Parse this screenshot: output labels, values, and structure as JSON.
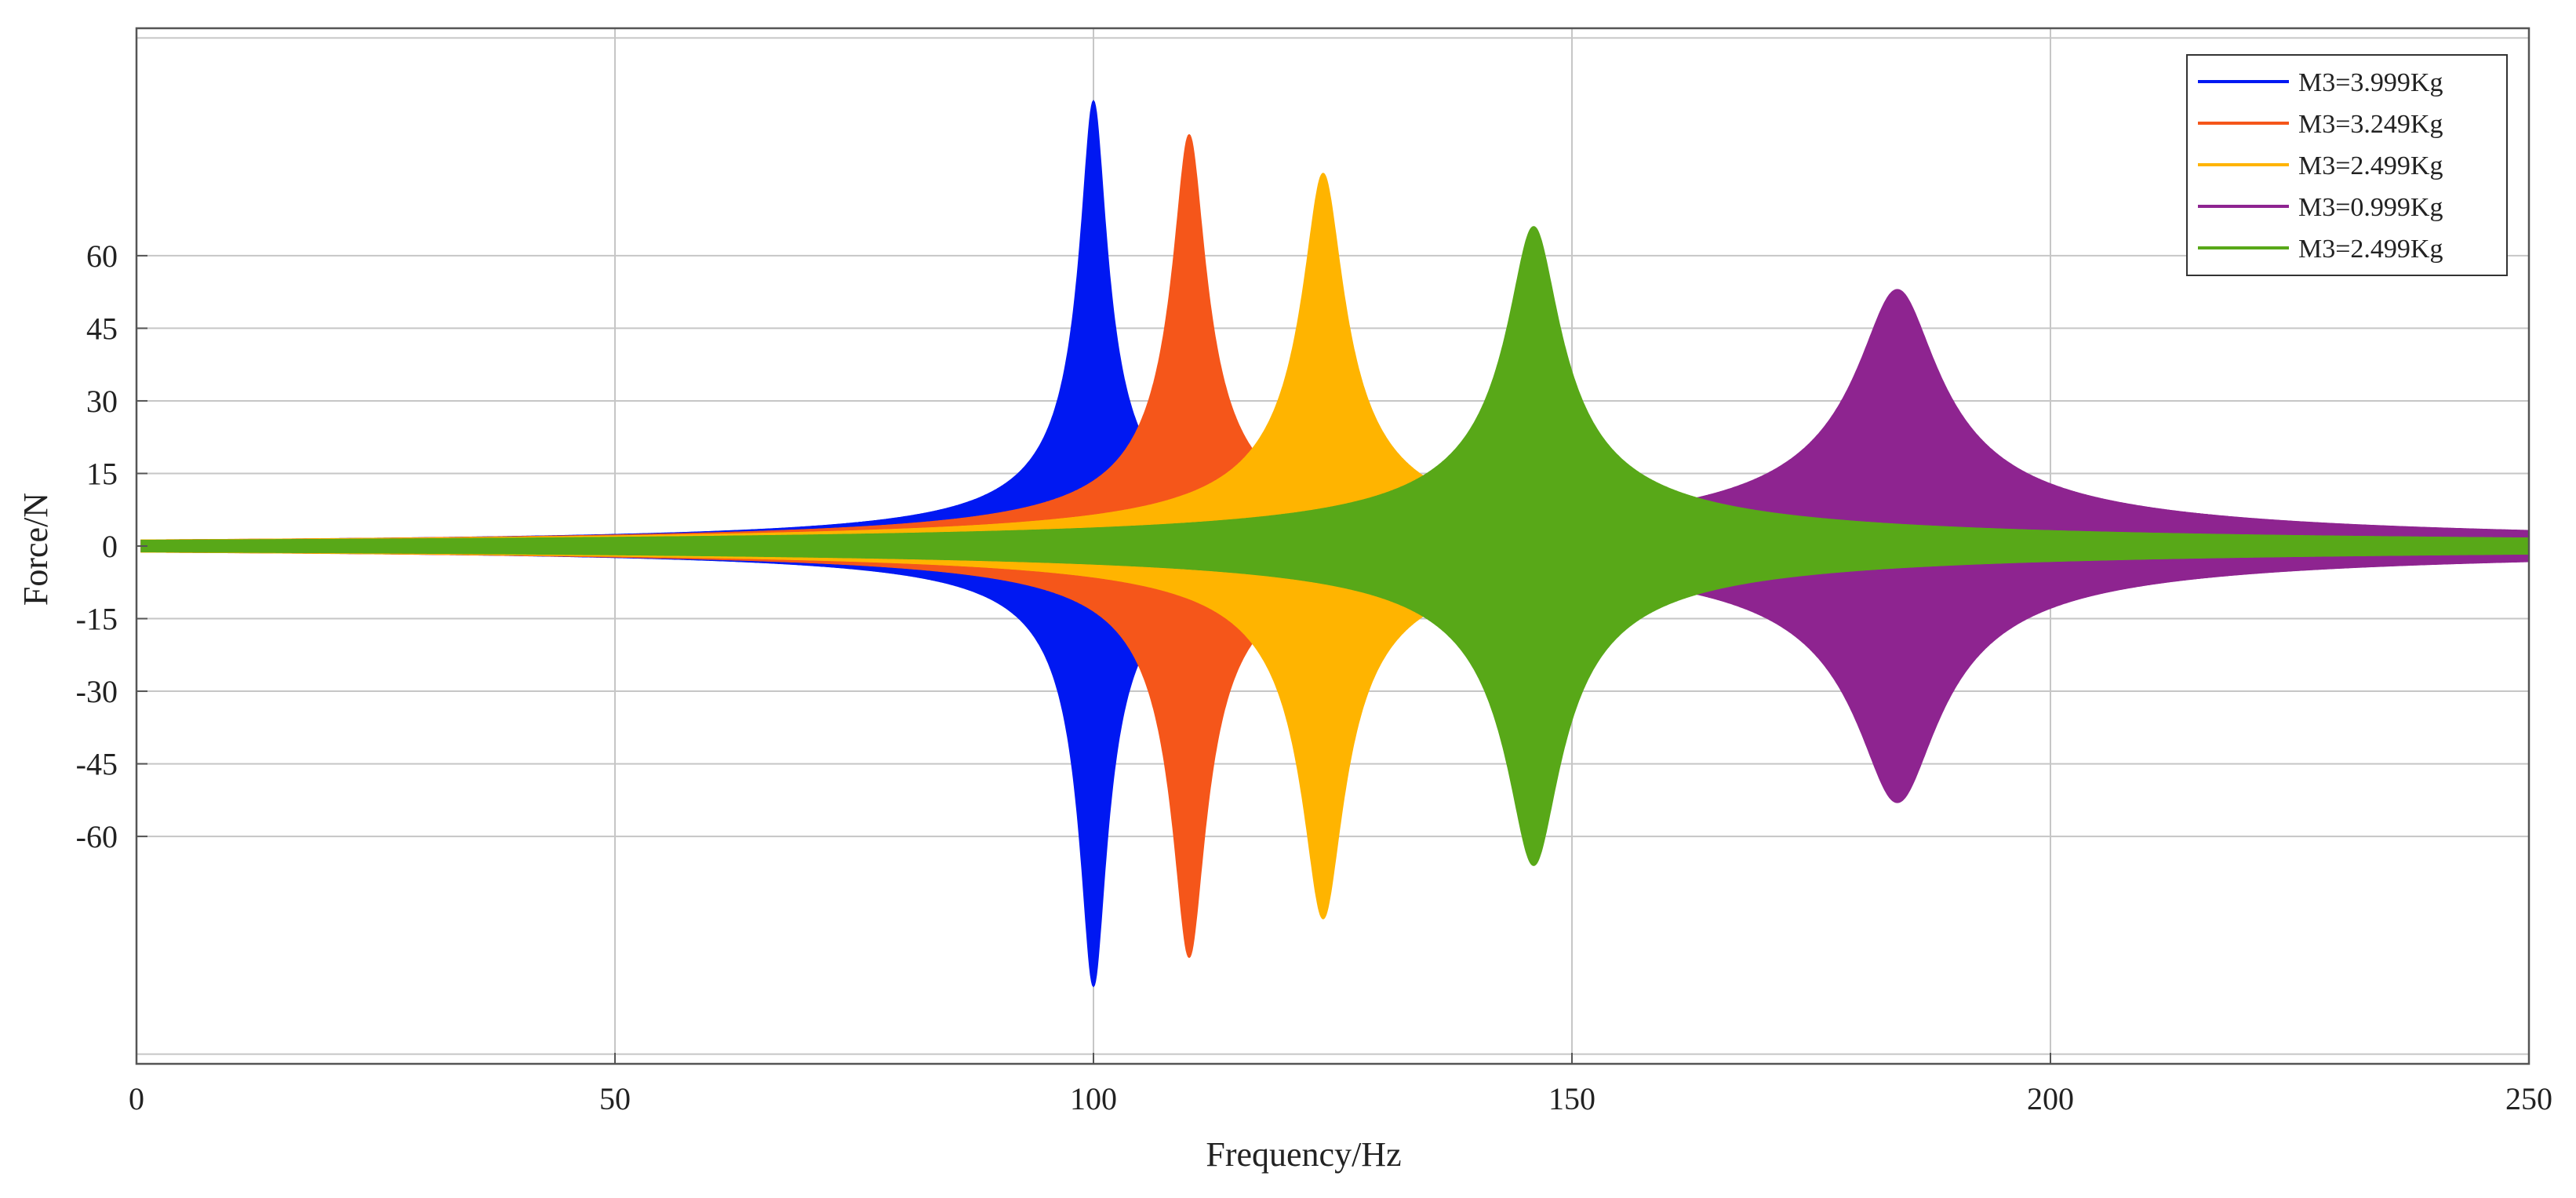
{
  "chart_data": {
    "type": "area",
    "xlabel": "Frequency/Hz",
    "ylabel": "Force/N",
    "xlim": [
      0,
      250
    ],
    "ylim": [
      -107,
      107
    ],
    "x_ticks": [
      0,
      50,
      100,
      150,
      200,
      250
    ],
    "y_ticks": [
      -60,
      -45,
      -30,
      -15,
      0,
      15,
      30,
      45,
      60
    ],
    "y_gridlines": [
      -105,
      -60,
      -45,
      -30,
      -15,
      0,
      15,
      30,
      45,
      60,
      105
    ],
    "grid": true,
    "legend_position": "top-right",
    "series": [
      {
        "name": "M3=3.999Kg",
        "color": "#0018f2",
        "peak_frequency": 100,
        "peak_force_pos": 92,
        "peak_force_neg": -91,
        "half_width": 1.3
      },
      {
        "name": "M3=3.249Kg",
        "color": "#f5561a",
        "peak_frequency": 110,
        "peak_force_pos": 85,
        "peak_force_neg": -85,
        "half_width": 1.6
      },
      {
        "name": "M3=2.499Kg",
        "color": "#ffb400",
        "peak_frequency": 124,
        "peak_force_pos": 77,
        "peak_force_neg": -77,
        "half_width": 2.0
      },
      {
        "name": "M3=0.999Kg",
        "color": "#8e2490",
        "peak_frequency": 184,
        "peak_force_pos": 53,
        "peak_force_neg": -53,
        "half_width": 4.0
      },
      {
        "name": "M3=2.499Kg",
        "color": "#58a818",
        "peak_frequency": 146,
        "peak_force_pos": 66,
        "peak_force_neg": -66,
        "half_width": 2.6
      }
    ],
    "draw_order": [
      0,
      1,
      2,
      3,
      4
    ]
  }
}
